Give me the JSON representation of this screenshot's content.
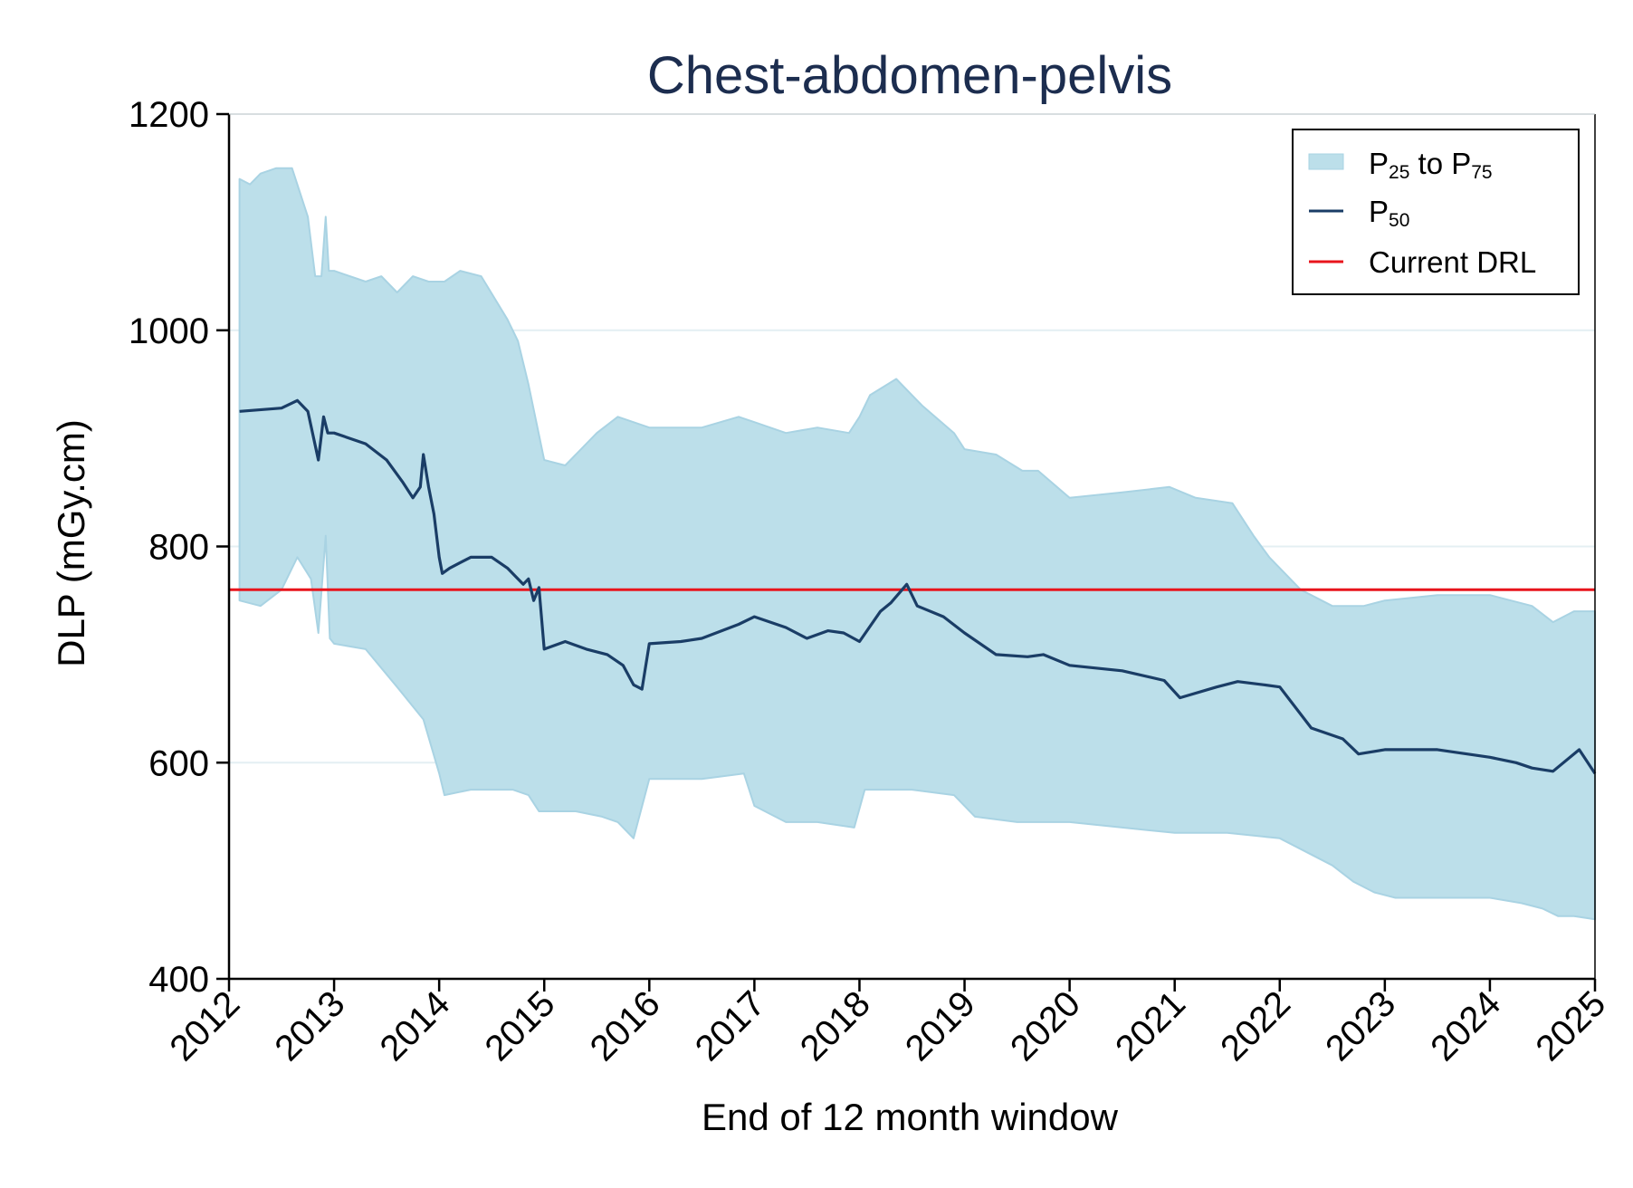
{
  "chart_data": {
    "type": "area",
    "title": "Chest-abdomen-pelvis",
    "xlabel": "End of 12 month window",
    "ylabel": "DLP (mGy.cm)",
    "xlim": [
      2012,
      2025
    ],
    "ylim": [
      400,
      1200
    ],
    "x_ticks": [
      "2012",
      "2013",
      "2014",
      "2015",
      "2016",
      "2017",
      "2018",
      "2019",
      "2020",
      "2021",
      "2022",
      "2023",
      "2024",
      "2025"
    ],
    "y_ticks": [
      "400",
      "600",
      "800",
      "1000",
      "1200"
    ],
    "grid": "horizontal",
    "legend_position": "top-right",
    "legend": {
      "band": {
        "main": "P",
        "sub1": "25",
        "mid": " to P",
        "sub2": "75"
      },
      "median": {
        "main": "P",
        "sub": "50"
      },
      "drl": "Current DRL"
    },
    "colors": {
      "band_fill": "#bcdfea",
      "band_edge": "#a9d3e3",
      "median": "#1a3d66",
      "drl": "#e8141c",
      "grid": "#e4eff3",
      "title": "#1c2d4f"
    },
    "drl_value": 760,
    "series": [
      {
        "name": "P25 to P75 upper (P75)",
        "x": [
          2012.1,
          2012.2,
          2012.3,
          2012.45,
          2012.6,
          2012.75,
          2012.82,
          2012.88,
          2012.92,
          2012.95,
          2013.0,
          2013.3,
          2013.45,
          2013.6,
          2013.75,
          2013.9,
          2014.05,
          2014.2,
          2014.4,
          2014.65,
          2014.75,
          2014.85,
          2015.0,
          2015.2,
          2015.5,
          2015.7,
          2016.0,
          2016.5,
          2016.85,
          2017.0,
          2017.3,
          2017.6,
          2017.9,
          2018.0,
          2018.1,
          2018.35,
          2018.6,
          2018.9,
          2019.0,
          2019.3,
          2019.55,
          2019.7,
          2020.0,
          2020.5,
          2020.95,
          2021.2,
          2021.55,
          2021.75,
          2021.9,
          2022.2,
          2022.5,
          2022.8,
          2023.0,
          2023.5,
          2024.0,
          2024.2,
          2024.4,
          2024.6,
          2024.8,
          2025.0
        ],
        "values": [
          1140,
          1135,
          1145,
          1150,
          1150,
          1105,
          1050,
          1050,
          1105,
          1055,
          1055,
          1045,
          1050,
          1035,
          1050,
          1045,
          1045,
          1055,
          1050,
          1010,
          990,
          950,
          880,
          875,
          905,
          920,
          910,
          910,
          920,
          915,
          905,
          910,
          905,
          920,
          940,
          955,
          930,
          905,
          890,
          885,
          870,
          870,
          845,
          850,
          855,
          845,
          840,
          810,
          790,
          760,
          745,
          745,
          750,
          755,
          755,
          750,
          745,
          730,
          740,
          740
        ]
      },
      {
        "name": "P25 to P75 lower (P25)",
        "x": [
          2012.1,
          2012.3,
          2012.5,
          2012.65,
          2012.78,
          2012.85,
          2012.92,
          2012.96,
          2013.0,
          2013.3,
          2013.6,
          2013.85,
          2014.0,
          2014.05,
          2014.3,
          2014.5,
          2014.7,
          2014.85,
          2014.95,
          2015.1,
          2015.3,
          2015.55,
          2015.7,
          2015.85,
          2016.0,
          2016.5,
          2016.9,
          2017.0,
          2017.3,
          2017.6,
          2017.95,
          2018.05,
          2018.5,
          2018.9,
          2019.1,
          2019.5,
          2020.0,
          2020.5,
          2021.0,
          2021.5,
          2022.0,
          2022.5,
          2022.7,
          2022.9,
          2023.1,
          2023.5,
          2024.0,
          2024.3,
          2024.5,
          2024.65,
          2024.8,
          2025.0
        ],
        "values": [
          750,
          745,
          760,
          790,
          770,
          720,
          810,
          715,
          710,
          705,
          670,
          640,
          590,
          570,
          575,
          575,
          575,
          570,
          555,
          555,
          555,
          550,
          545,
          530,
          585,
          585,
          590,
          560,
          545,
          545,
          540,
          575,
          575,
          570,
          550,
          545,
          545,
          540,
          535,
          535,
          530,
          505,
          490,
          480,
          475,
          475,
          475,
          470,
          465,
          458,
          458,
          455
        ]
      },
      {
        "name": "P50",
        "x": [
          2012.1,
          2012.5,
          2012.65,
          2012.75,
          2012.85,
          2012.9,
          2012.94,
          2013.0,
          2013.3,
          2013.5,
          2013.65,
          2013.75,
          2013.82,
          2013.85,
          2013.9,
          2013.95,
          2014.0,
          2014.03,
          2014.1,
          2014.3,
          2014.5,
          2014.65,
          2014.8,
          2014.85,
          2014.9,
          2014.95,
          2015.0,
          2015.2,
          2015.4,
          2015.6,
          2015.75,
          2015.85,
          2015.93,
          2016.0,
          2016.3,
          2016.5,
          2016.85,
          2017.0,
          2017.3,
          2017.5,
          2017.7,
          2017.85,
          2018.0,
          2018.2,
          2018.3,
          2018.45,
          2018.55,
          2018.8,
          2019.0,
          2019.3,
          2019.6,
          2019.75,
          2020.0,
          2020.5,
          2020.9,
          2021.05,
          2021.4,
          2021.6,
          2021.85,
          2022.0,
          2022.3,
          2022.6,
          2022.75,
          2023.0,
          2023.5,
          2024.0,
          2024.25,
          2024.4,
          2024.6,
          2024.85,
          2025.0
        ],
        "values": [
          925,
          928,
          935,
          925,
          880,
          920,
          905,
          905,
          895,
          880,
          860,
          845,
          855,
          885,
          855,
          830,
          790,
          775,
          780,
          790,
          790,
          780,
          765,
          770,
          750,
          762,
          705,
          712,
          705,
          700,
          690,
          672,
          668,
          710,
          712,
          715,
          728,
          735,
          725,
          715,
          722,
          720,
          712,
          740,
          748,
          765,
          745,
          735,
          720,
          700,
          698,
          700,
          690,
          685,
          676,
          660,
          670,
          675,
          672,
          670,
          632,
          622,
          608,
          612,
          612,
          605,
          600,
          595,
          592,
          612,
          590
        ]
      }
    ]
  }
}
